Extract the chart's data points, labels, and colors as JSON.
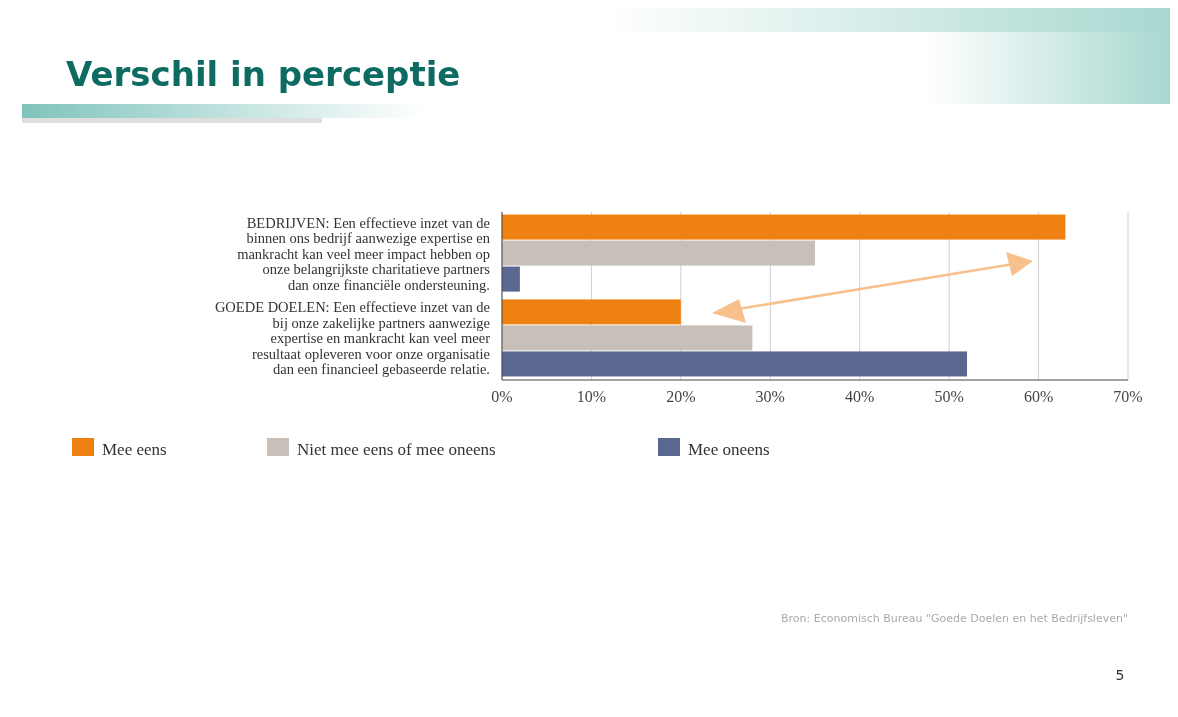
{
  "chart_data": {
    "type": "bar",
    "orientation": "horizontal",
    "title": "Verschil in perceptie",
    "categories": [
      "BEDRIJVEN: Een effectieve inzet van de binnen ons bedrijf aanwezige expertise en mankracht kan veel meer impact hebben op onze belangrijkste charitatieve partners dan onze financiële ondersteuning.",
      "GOEDE DOELEN: Een effectieve inzet van de bij onze zakelijke partners aanwezige expertise en mankracht kan veel meer resultaat opleveren voor onze organisatie dan een financieel gebaseerde relatie."
    ],
    "series": [
      {
        "name": "Mee eens",
        "color": "#ef8112",
        "values": [
          63,
          20
        ]
      },
      {
        "name": "Niet mee eens of mee oneens",
        "color": "#c8c0b8",
        "values": [
          35,
          28
        ]
      },
      {
        "name": "Mee oneens",
        "color": "#5a6890",
        "values": [
          2,
          52
        ]
      }
    ],
    "xlim": [
      0,
      70
    ],
    "xticks": [
      {
        "value": 0,
        "label": "0%"
      },
      {
        "value": 10,
        "label": "10%"
      },
      {
        "value": 20,
        "label": "20%"
      },
      {
        "value": 30,
        "label": "30%"
      },
      {
        "value": 40,
        "label": "40%"
      },
      {
        "value": 50,
        "label": "50%"
      },
      {
        "value": 60,
        "label": "60%"
      },
      {
        "value": 70,
        "label": "70%"
      }
    ],
    "grid": "x",
    "legend": "bottom",
    "annotations": [
      "Bron: Economisch Bureau \"Goede Doelen en het Bedrijfsleven\"",
      "5"
    ]
  }
}
